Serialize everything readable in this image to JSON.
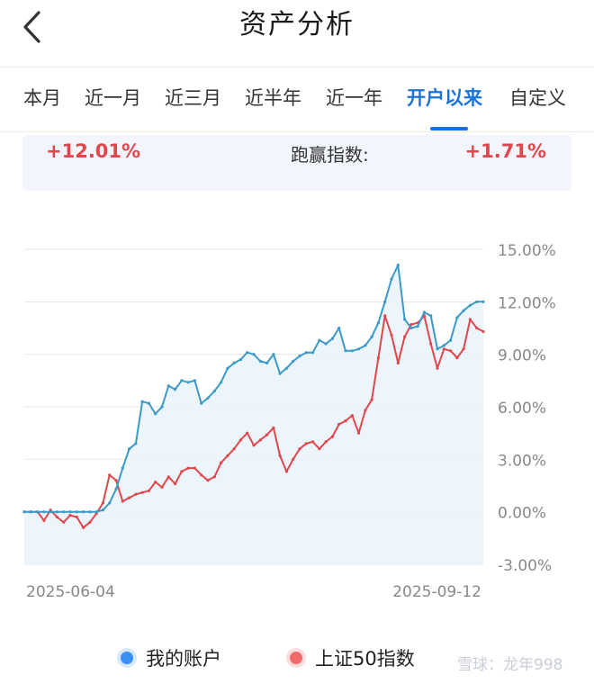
{
  "header": {
    "title": "资产分析",
    "back_icon": "chevron-left-icon"
  },
  "tabs": [
    {
      "label": "本月",
      "active": false
    },
    {
      "label": "近一月",
      "active": false
    },
    {
      "label": "近三月",
      "active": false
    },
    {
      "label": "近半年",
      "active": false
    },
    {
      "label": "近一年",
      "active": false
    },
    {
      "label": "开户以来",
      "active": true
    },
    {
      "label": "自定义",
      "active": false
    }
  ],
  "summary": {
    "return_value": "+12.01%",
    "excess_label": "跑赢指数:",
    "excess_value": "+1.71%"
  },
  "colors": {
    "accent": "#1a73d9",
    "account_line": "#3d9ac7",
    "index_line": "#e0474c",
    "fill": "#eaf3fc"
  },
  "legend": [
    {
      "label": "我的账户",
      "color": "#3b8ff0"
    },
    {
      "label": "上证50指数",
      "color": "#f06a6a"
    }
  ],
  "watermark": "雪球：龙年998",
  "chart_data": {
    "type": "line",
    "x_start_label": "2025-06-04",
    "x_end_label": "2025-09-12",
    "y_ticks": [
      "15.00%",
      "12.00%",
      "9.00%",
      "6.00%",
      "3.00%",
      "0.00%",
      "-3.00%"
    ],
    "ylim": [
      -3,
      15
    ],
    "grid": true,
    "legend_position": "bottom",
    "series": [
      {
        "name": "我的账户",
        "values": [
          0,
          0,
          0,
          0,
          0,
          0,
          0,
          0,
          0,
          0,
          0,
          0,
          0.1,
          0.5,
          1.3,
          2.5,
          3.6,
          3.9,
          6.3,
          6.2,
          5.6,
          6.0,
          7.2,
          7.0,
          7.5,
          7.4,
          7.5,
          6.2,
          6.5,
          6.9,
          7.4,
          8.2,
          8.5,
          8.7,
          9.1,
          9.0,
          8.6,
          8.5,
          9.0,
          7.9,
          8.2,
          8.6,
          8.9,
          9.1,
          9.1,
          9.8,
          9.6,
          9.9,
          10.5,
          9.2,
          9.2,
          9.3,
          9.5,
          10.0,
          10.8,
          12.0,
          13.3,
          14.1,
          11.0,
          10.5,
          10.6,
          11.4,
          11.2,
          9.3,
          9.5,
          9.8,
          11.1,
          11.5,
          11.8,
          12.0,
          12.0
        ]
      },
      {
        "name": "上证50指数",
        "values": [
          0,
          0,
          0,
          -0.5,
          0.1,
          -0.3,
          -0.6,
          -0.2,
          -0.3,
          -0.9,
          -0.6,
          -0.1,
          0.5,
          2.1,
          1.8,
          0.6,
          0.8,
          1.0,
          1.1,
          1.2,
          1.7,
          1.4,
          2.0,
          1.6,
          2.3,
          2.5,
          2.5,
          2.1,
          1.8,
          2.0,
          2.8,
          3.2,
          3.6,
          4.1,
          4.5,
          3.8,
          4.1,
          4.4,
          4.8,
          3.2,
          2.3,
          3.0,
          3.6,
          3.9,
          4.0,
          3.6,
          4.0,
          4.3,
          5.0,
          5.2,
          5.5,
          4.5,
          5.8,
          6.4,
          8.8,
          11.2,
          10.1,
          8.5,
          10.0,
          10.7,
          10.8,
          11.2,
          9.6,
          8.2,
          9.3,
          9.2,
          8.8,
          9.3,
          11.0,
          10.5,
          10.3
        ]
      }
    ]
  }
}
